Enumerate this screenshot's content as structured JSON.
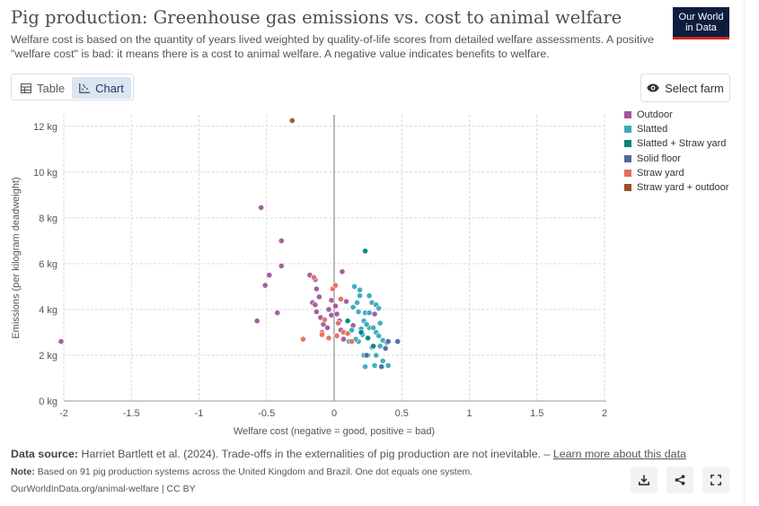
{
  "header": {
    "title": "Pig production: Greenhouse gas emissions vs. cost to animal welfare",
    "subtitle": "Welfare cost is based on the quantity of years lived weighted by quality-of-life scores from detailed welfare assessments. A positive \"welfare cost\" is bad: it means there is a cost to animal welfare. A negative value indicates benefits to welfare.",
    "logo_line1": "Our World",
    "logo_line2": "in Data"
  },
  "toolbar": {
    "tab_table": "Table",
    "tab_chart": "Chart",
    "select_farm": "Select farm"
  },
  "colors": {
    "Outdoor": "#a2559c",
    "Slatted": "#38aaba",
    "Slatted + Straw yard": "#00847e",
    "Solid floor": "#4c6a9c",
    "Straw yard": "#e56e5a",
    "Straw yard + outdoor": "#9a5129"
  },
  "chart_data": {
    "type": "scatter",
    "title": "Pig production: Greenhouse gas emissions vs. cost to animal welfare",
    "xlabel": "Welfare cost (negative = good, positive = bad)",
    "ylabel": "Emissions (per kilogram deadweight)",
    "xlim": [
      -2,
      2
    ],
    "ylim": [
      0,
      12.5
    ],
    "x_ticks": [
      -2,
      -1.5,
      -1,
      -0.5,
      0,
      0.5,
      1,
      1.5,
      2
    ],
    "x_tick_labels": [
      "-2",
      "-1.5",
      "-1",
      "-0.5",
      "0",
      "0.5",
      "1",
      "1.5",
      "2"
    ],
    "y_ticks": [
      0,
      2,
      4,
      6,
      8,
      10,
      12
    ],
    "y_tick_labels": [
      "0 kg",
      "2 kg",
      "4 kg",
      "6 kg",
      "8 kg",
      "10 kg",
      "12 kg"
    ],
    "legend": [
      "Outdoor",
      "Slatted",
      "Slatted + Straw yard",
      "Solid floor",
      "Straw yard",
      "Straw yard + outdoor"
    ],
    "series": [
      {
        "name": "Outdoor",
        "points": [
          [
            -2.02,
            2.6
          ],
          [
            -0.54,
            8.45
          ],
          [
            -0.39,
            7.0
          ],
          [
            -0.39,
            5.9
          ],
          [
            -0.48,
            5.5
          ],
          [
            -0.51,
            5.05
          ],
          [
            -0.57,
            3.5
          ],
          [
            -0.42,
            3.85
          ],
          [
            -0.18,
            5.5
          ],
          [
            -0.14,
            5.3
          ],
          [
            -0.13,
            4.9
          ],
          [
            -0.11,
            4.55
          ],
          [
            -0.16,
            4.3
          ],
          [
            -0.14,
            4.2
          ],
          [
            -0.13,
            3.9
          ],
          [
            -0.1,
            3.65
          ],
          [
            -0.08,
            3.35
          ],
          [
            -0.05,
            3.2
          ],
          [
            -0.04,
            4.0
          ],
          [
            -0.02,
            3.75
          ],
          [
            0.01,
            4.15
          ],
          [
            0.02,
            3.8
          ],
          [
            0.06,
            5.65
          ],
          [
            0.09,
            4.35
          ],
          [
            0.05,
            3.1
          ],
          [
            -0.02,
            4.4
          ],
          [
            0.04,
            3.5
          ],
          [
            0.14,
            3.3
          ],
          [
            0.3,
            3.8
          ],
          [
            0.07,
            2.7
          ]
        ]
      },
      {
        "name": "Slatted",
        "points": [
          [
            0.15,
            5.0
          ],
          [
            0.19,
            4.85
          ],
          [
            0.19,
            4.6
          ],
          [
            0.14,
            4.1
          ],
          [
            0.18,
            3.9
          ],
          [
            0.23,
            3.85
          ],
          [
            0.26,
            4.6
          ],
          [
            0.28,
            4.3
          ],
          [
            0.31,
            4.2
          ],
          [
            0.33,
            4.05
          ],
          [
            0.22,
            3.5
          ],
          [
            0.26,
            3.2
          ],
          [
            0.29,
            3.2
          ],
          [
            0.31,
            3.0
          ],
          [
            0.33,
            2.85
          ],
          [
            0.36,
            2.65
          ],
          [
            0.39,
            2.55
          ],
          [
            0.34,
            2.4
          ],
          [
            0.28,
            2.35
          ],
          [
            0.25,
            2.0
          ],
          [
            0.22,
            2.0
          ],
          [
            0.31,
            2.0
          ],
          [
            0.36,
            1.75
          ],
          [
            0.4,
            1.55
          ],
          [
            0.3,
            1.55
          ],
          [
            0.23,
            1.5
          ],
          [
            0.18,
            2.6
          ],
          [
            0.21,
            2.9
          ],
          [
            0.13,
            3.1
          ],
          [
            0.11,
            2.6
          ],
          [
            0.16,
            2.7
          ],
          [
            0.26,
            3.85
          ],
          [
            0.24,
            3.35
          ],
          [
            0.34,
            3.4
          ],
          [
            0.2,
            3.15
          ],
          [
            0.17,
            4.3
          ]
        ]
      },
      {
        "name": "Slatted + Straw yard",
        "points": [
          [
            0.23,
            6.55
          ],
          [
            0.1,
            3.5
          ],
          [
            0.25,
            2.75
          ],
          [
            0.29,
            2.4
          ],
          [
            0.2,
            3.0
          ]
        ]
      },
      {
        "name": "Solid floor",
        "points": [
          [
            0.47,
            2.6
          ],
          [
            0.38,
            2.3
          ],
          [
            0.35,
            1.5
          ],
          [
            0.24,
            2.0
          ],
          [
            0.4,
            2.6
          ]
        ]
      },
      {
        "name": "Straw yard",
        "points": [
          [
            -0.15,
            5.4
          ],
          [
            -0.23,
            2.7
          ],
          [
            -0.09,
            3.0
          ],
          [
            -0.09,
            2.9
          ],
          [
            -0.04,
            2.75
          ],
          [
            -0.01,
            4.9
          ],
          [
            0.01,
            5.05
          ],
          [
            0.02,
            2.85
          ],
          [
            0.07,
            3.0
          ],
          [
            0.1,
            2.95
          ],
          [
            0.05,
            4.45
          ],
          [
            -0.07,
            3.55
          ],
          [
            0.13,
            2.6
          ],
          [
            0.03,
            3.4
          ]
        ]
      },
      {
        "name": "Straw yard + outdoor",
        "points": [
          [
            -0.31,
            12.25
          ]
        ]
      }
    ]
  },
  "footer": {
    "source_label": "Data source:",
    "source_text": "Harriet Bartlett et al. (2024). Trade-offs in the externalities of pig production are not inevitable. –",
    "learn_more": "Learn more about this data",
    "note_label": "Note:",
    "note_text": "Based on 91 pig production systems across the United Kingdom and Brazil. One dot equals one system.",
    "url": "OurWorldInData.org/animal-welfare | CC BY"
  }
}
